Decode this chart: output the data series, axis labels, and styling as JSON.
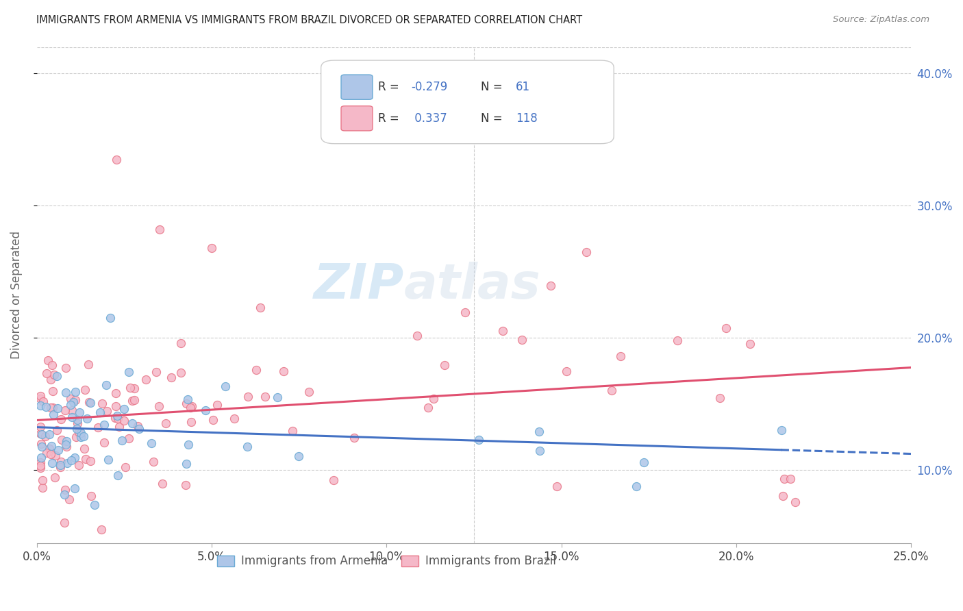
{
  "title": "IMMIGRANTS FROM ARMENIA VS IMMIGRANTS FROM BRAZIL DIVORCED OR SEPARATED CORRELATION CHART",
  "source": "Source: ZipAtlas.com",
  "ylabel": "Divorced or Separated",
  "armenia_color": "#aec6e8",
  "armenia_edge": "#6aaad4",
  "brazil_color": "#f5b8c8",
  "brazil_edge": "#e8788a",
  "armenia_line_color": "#4472c4",
  "brazil_line_color": "#e05070",
  "armenia_R": -0.279,
  "armenia_N": 61,
  "brazil_R": 0.337,
  "brazil_N": 118,
  "legend_label_armenia": "Immigrants from Armenia",
  "legend_label_brazil": "Immigrants from Brazil",
  "watermark_zip": "ZIP",
  "watermark_atlas": "atlas",
  "xmin": 0.0,
  "xmax": 0.25,
  "ymin": 0.045,
  "ymax": 0.42,
  "xtick_vals": [
    0.0,
    0.05,
    0.1,
    0.15,
    0.2,
    0.25
  ],
  "ytick_vals": [
    0.1,
    0.2,
    0.3,
    0.4
  ]
}
